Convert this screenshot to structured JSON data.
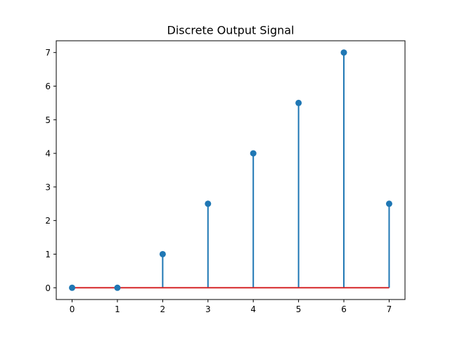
{
  "chart_data": {
    "type": "stem",
    "title": "Discrete Output Signal",
    "xlabel": "",
    "ylabel": "",
    "x": [
      0,
      1,
      2,
      3,
      4,
      5,
      6,
      7
    ],
    "y": [
      0,
      0,
      1,
      2.5,
      4,
      5.5,
      7,
      2.5
    ],
    "xlim": [
      -0.35,
      7.35
    ],
    "ylim": [
      -0.35,
      7.35
    ],
    "xticks": [
      0,
      1,
      2,
      3,
      4,
      5,
      6,
      7
    ],
    "yticks": [
      0,
      1,
      2,
      3,
      4,
      5,
      6,
      7
    ],
    "baseline": 0,
    "grid": false,
    "colors": {
      "stem": "#1f77b4",
      "marker": "#1f77b4",
      "baseline": "#d62728"
    }
  }
}
